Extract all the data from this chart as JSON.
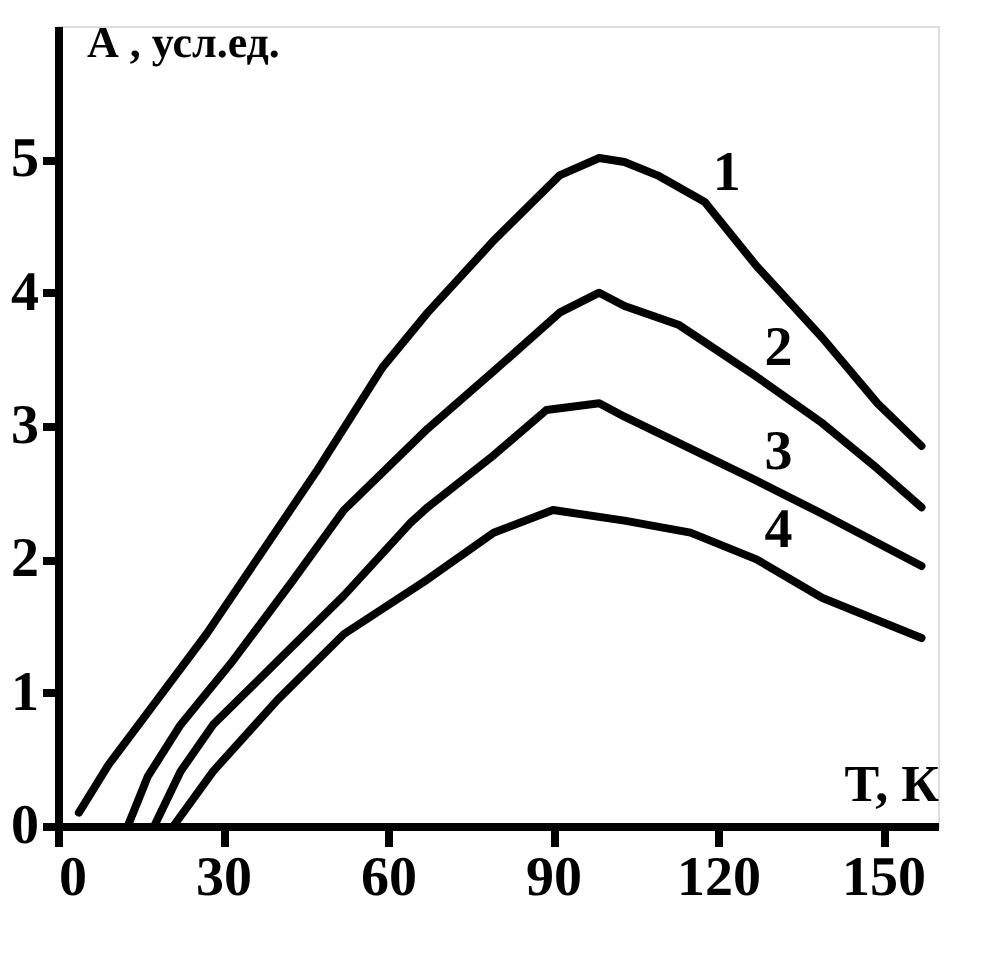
{
  "chart_data": {
    "type": "line",
    "xlabel": "T, К",
    "ylabel": "А , усл.ед.",
    "xlim": [
      0,
      160
    ],
    "ylim": [
      0,
      6
    ],
    "xticks": [
      0,
      30,
      60,
      90,
      120,
      150
    ],
    "yticks": [
      0,
      1,
      2,
      3,
      4,
      5
    ],
    "grid": false,
    "legend": false,
    "marker": "none",
    "line_style": "solid",
    "series": [
      {
        "name": "1",
        "color": "#000000",
        "x": [
          3.8,
          9.2,
          16.3,
          27,
          36.5,
          47,
          59,
          67.2,
          79.2,
          91.2,
          98.4,
          103,
          109,
          117.6,
          127,
          139,
          149,
          157
        ],
        "values": [
          0.1,
          0.46,
          0.85,
          1.44,
          2.02,
          2.66,
          3.44,
          3.85,
          4.39,
          4.88,
          5.01,
          4.98,
          4.88,
          4.68,
          4.2,
          3.66,
          3.17,
          2.85
        ]
      },
      {
        "name": "2",
        "color": "#000000",
        "x": [
          12.7,
          16.3,
          22.3,
          31.8,
          42.5,
          52,
          67.2,
          79.2,
          91.2,
          98.4,
          103,
          112.8,
          127,
          139,
          149,
          157
        ],
        "values": [
          0,
          0.37,
          0.76,
          1.24,
          1.83,
          2.37,
          2.98,
          3.41,
          3.85,
          4.0,
          3.9,
          3.76,
          3.37,
          3.02,
          2.68,
          2.39
        ]
      },
      {
        "name": "3",
        "color": "#000000",
        "x": [
          17.5,
          22.3,
          28.2,
          40,
          52,
          64,
          67.2,
          79.2,
          88.8,
          98.4,
          103,
          115,
          127,
          139,
          157
        ],
        "values": [
          0,
          0.41,
          0.76,
          1.24,
          1.73,
          2.27,
          2.39,
          2.78,
          3.12,
          3.17,
          3.07,
          2.83,
          2.59,
          2.34,
          1.95
        ]
      },
      {
        "name": "4",
        "color": "#000000",
        "x": [
          21,
          28.2,
          40,
          52,
          67.2,
          79.2,
          90,
          103,
          115,
          127,
          139,
          157
        ],
        "values": [
          0,
          0.41,
          0.95,
          1.44,
          1.85,
          2.2,
          2.37,
          2.29,
          2.2,
          2.0,
          1.71,
          1.41
        ]
      }
    ]
  }
}
